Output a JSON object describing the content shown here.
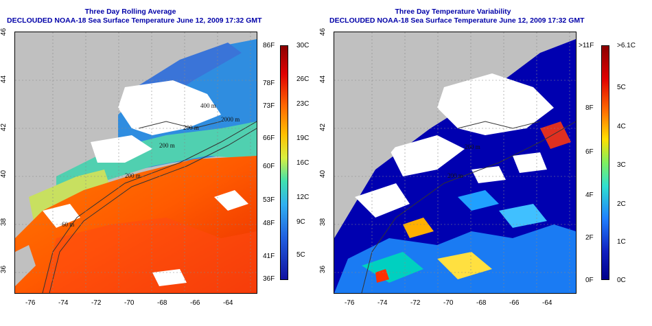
{
  "left_panel": {
    "title": "Three Day Rolling Average",
    "subtitle": "DECLOUDED NOAA-18 Sea Surface Temperature June 12, 2009 17:32 GMT",
    "colorbar_f": [
      "86F",
      "78F",
      "73F",
      "66F",
      "60F",
      "53F",
      "48F",
      "41F",
      "36F"
    ],
    "colorbar_c": [
      "30C",
      "26C",
      "23C",
      "19C",
      "16C",
      "12C",
      "9C",
      "5C"
    ],
    "contours": [
      "200 m",
      "200 m",
      "2000 m",
      "400 m",
      "200 m",
      "60 m"
    ]
  },
  "right_panel": {
    "title": "Three Day Temperature Variability",
    "subtitle": "DECLOUDED NOAA-18 Sea Surface Temperature June 12, 2009 17:32 GMT",
    "colorbar_f": [
      ">11F",
      "8F",
      "6F",
      "4F",
      "2F",
      "0F"
    ],
    "colorbar_c": [
      ">6.1C",
      "5C",
      "4C",
      "3C",
      "2C",
      "1C",
      "0C"
    ],
    "contours": [
      "200 m",
      "200 m"
    ]
  },
  "axes": {
    "lon_ticks": [
      "-76",
      "-74",
      "-72",
      "-70",
      "-68",
      "-66",
      "-64"
    ],
    "lat_ticks": [
      "46",
      "44",
      "42",
      "40",
      "38",
      "36"
    ]
  },
  "colors": {
    "land": "#c0c0c0",
    "cloud": "#ffffff",
    "title": "#0000a8"
  }
}
